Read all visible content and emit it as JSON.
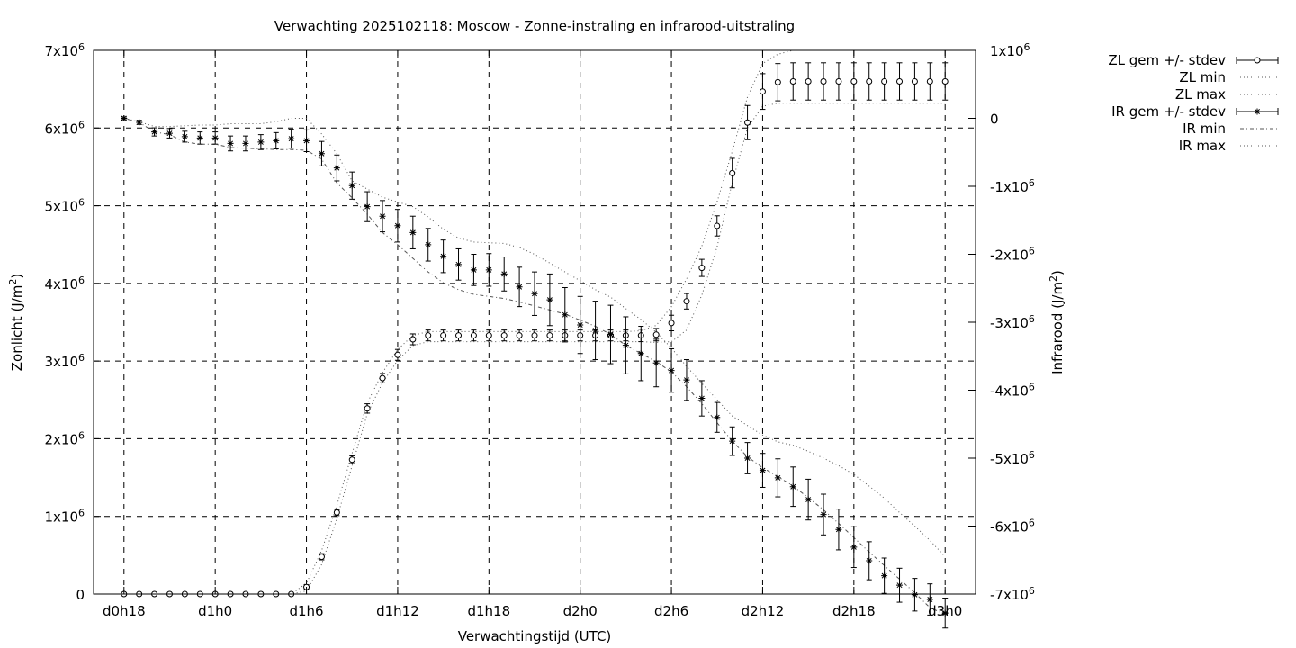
{
  "chart_data": {
    "type": "line",
    "title": "Verwachting 2025102118: Moscow - Zonne-instraling en infrarood-uitstraling",
    "xlabel": "Verwachtingstijd (UTC)",
    "ylabel": "Zonlicht (J/m²)",
    "y2label": "Infrarood (J/m²)",
    "x_tick_labels": [
      "d0h18",
      "d1h0",
      "d1h6",
      "d1h12",
      "d1h18",
      "d2h0",
      "d2h6",
      "d2h12",
      "d2h18",
      "d3h0"
    ],
    "x_tick_hours": [
      0,
      6,
      12,
      18,
      24,
      30,
      36,
      42,
      48,
      54
    ],
    "xlim_hours": [
      -2,
      56
    ],
    "y_ticks": [
      {
        "value": 0,
        "base": "0",
        "exp": ""
      },
      {
        "value": 1000000,
        "base": "1x10",
        "exp": "6"
      },
      {
        "value": 2000000,
        "base": "2x10",
        "exp": "6"
      },
      {
        "value": 3000000,
        "base": "3x10",
        "exp": "6"
      },
      {
        "value": 4000000,
        "base": "4x10",
        "exp": "6"
      },
      {
        "value": 5000000,
        "base": "5x10",
        "exp": "6"
      },
      {
        "value": 6000000,
        "base": "6x10",
        "exp": "6"
      },
      {
        "value": 7000000,
        "base": "7x10",
        "exp": "6"
      }
    ],
    "ylim": [
      0,
      7000000
    ],
    "y2_ticks": [
      {
        "value": 1000000,
        "base": "1x10",
        "exp": "6"
      },
      {
        "value": 0,
        "base": "0",
        "exp": ""
      },
      {
        "value": -1000000,
        "base": "-1x10",
        "exp": "6"
      },
      {
        "value": -2000000,
        "base": "-2x10",
        "exp": "6"
      },
      {
        "value": -3000000,
        "base": "-3x10",
        "exp": "6"
      },
      {
        "value": -4000000,
        "base": "-4x10",
        "exp": "6"
      },
      {
        "value": -5000000,
        "base": "-5x10",
        "exp": "6"
      },
      {
        "value": -6000000,
        "base": "-6x10",
        "exp": "6"
      },
      {
        "value": -7000000,
        "base": "-7x10",
        "exp": "6"
      }
    ],
    "y2lim": [
      -7000000,
      1000000
    ],
    "grid": true,
    "legend_position": "outside-right",
    "x_hours": [
      0,
      1,
      2,
      3,
      4,
      5,
      6,
      7,
      8,
      9,
      10,
      11,
      12,
      13,
      14,
      15,
      16,
      17,
      18,
      19,
      20,
      21,
      22,
      23,
      24,
      25,
      26,
      27,
      28,
      29,
      30,
      31,
      32,
      33,
      34,
      35,
      36,
      37,
      38,
      39,
      40,
      41,
      42,
      43,
      44,
      45,
      46,
      47,
      48,
      49,
      50,
      51,
      52,
      53,
      54
    ],
    "series": [
      {
        "name": "ZL gem +/- stdev",
        "axis": "y1",
        "marker": "circle",
        "mean": [
          0,
          0,
          0,
          0,
          0,
          0,
          0,
          0,
          0,
          0,
          0,
          0,
          90000,
          480000,
          1050000,
          1730000,
          2390000,
          2780000,
          3080000,
          3280000,
          3330000,
          3330000,
          3330000,
          3330000,
          3330000,
          3330000,
          3330000,
          3330000,
          3330000,
          3330000,
          3330000,
          3330000,
          3330000,
          3330000,
          3330000,
          3340000,
          3490000,
          3770000,
          4200000,
          4740000,
          5420000,
          6070000,
          6470000,
          6590000,
          6600000,
          6600000,
          6600000,
          6600000,
          6600000,
          6600000,
          6600000,
          6600000,
          6600000,
          6600000,
          6600000
        ],
        "stdev": [
          0,
          0,
          0,
          0,
          0,
          0,
          0,
          0,
          0,
          0,
          0,
          0,
          30000,
          40000,
          40000,
          50000,
          60000,
          60000,
          70000,
          70000,
          70000,
          70000,
          70000,
          70000,
          70000,
          70000,
          70000,
          70000,
          70000,
          70000,
          70000,
          70000,
          70000,
          70000,
          80000,
          80000,
          100000,
          100000,
          110000,
          130000,
          190000,
          220000,
          230000,
          240000,
          240000,
          240000,
          240000,
          240000,
          240000,
          240000,
          240000,
          240000,
          240000,
          240000,
          240000
        ]
      },
      {
        "name": "ZL min",
        "axis": "y1",
        "style": "dotted",
        "values": [
          0,
          0,
          0,
          0,
          0,
          0,
          0,
          0,
          0,
          0,
          0,
          0,
          40000,
          380000,
          970000,
          1650000,
          2320000,
          2720000,
          3010000,
          3200000,
          3250000,
          3250000,
          3250000,
          3250000,
          3250000,
          3250000,
          3250000,
          3250000,
          3250000,
          3250000,
          3250000,
          3250000,
          3250000,
          3250000,
          3250000,
          3240000,
          3250000,
          3400000,
          3850000,
          4470000,
          5300000,
          6000000,
          6280000,
          6320000,
          6320000,
          6320000,
          6320000,
          6320000,
          6320000,
          6320000,
          6320000,
          6320000,
          6320000,
          6320000,
          6320000
        ]
      },
      {
        "name": "ZL max",
        "axis": "y1",
        "style": "dotted",
        "values": [
          0,
          0,
          0,
          0,
          0,
          0,
          0,
          0,
          0,
          0,
          0,
          0,
          140000,
          560000,
          1140000,
          1810000,
          2460000,
          2850000,
          3150000,
          3330000,
          3380000,
          3380000,
          3380000,
          3380000,
          3380000,
          3380000,
          3380000,
          3380000,
          3380000,
          3380000,
          3380000,
          3380000,
          3380000,
          3380000,
          3390000,
          3460000,
          3700000,
          4060000,
          4480000,
          5050000,
          5700000,
          6400000,
          6830000,
          6950000,
          7000000,
          7000000,
          7000000,
          7000000,
          7000000,
          7000000,
          7000000,
          7000000,
          7000000,
          7000000,
          7000000
        ]
      },
      {
        "name": "IR gem +/- stdev",
        "axis": "y2",
        "marker": "star",
        "mean": [
          0,
          -60000,
          -200000,
          -220000,
          -270000,
          -290000,
          -290000,
          -370000,
          -370000,
          -350000,
          -330000,
          -300000,
          -330000,
          -520000,
          -730000,
          -990000,
          -1300000,
          -1440000,
          -1580000,
          -1680000,
          -1860000,
          -2030000,
          -2150000,
          -2230000,
          -2230000,
          -2290000,
          -2480000,
          -2580000,
          -2670000,
          -2890000,
          -3040000,
          -3120000,
          -3180000,
          -3340000,
          -3460000,
          -3600000,
          -3710000,
          -3850000,
          -4120000,
          -4400000,
          -4750000,
          -5000000,
          -5180000,
          -5290000,
          -5420000,
          -5610000,
          -5830000,
          -6050000,
          -6310000,
          -6510000,
          -6730000,
          -6870000,
          -7010000,
          -7080000,
          -7280000
        ]
      },
      {
        "name": "IR min",
        "axis": "y2",
        "style": "dotdash",
        "values": [
          0,
          -60000,
          -200000,
          -240000,
          -350000,
          -380000,
          -380000,
          -430000,
          -440000,
          -450000,
          -460000,
          -460000,
          -470000,
          -600000,
          -950000,
          -1170000,
          -1410000,
          -1680000,
          -1860000,
          -2060000,
          -2260000,
          -2420000,
          -2520000,
          -2590000,
          -2620000,
          -2650000,
          -2700000,
          -2760000,
          -2820000,
          -2880000,
          -2970000,
          -3060000,
          -3180000,
          -3340000,
          -3460000,
          -3580000,
          -3730000,
          -3950000,
          -4200000,
          -4480000,
          -4750000,
          -4980000,
          -5140000,
          -5270000,
          -5410000,
          -5580000,
          -5760000,
          -5960000,
          -6170000,
          -6380000,
          -6580000,
          -6780000,
          -6980000,
          -7200000,
          -7300000
        ]
      },
      {
        "name": "IR max",
        "axis": "y2",
        "style": "dotted",
        "values": [
          0,
          -50000,
          -120000,
          -120000,
          -110000,
          -100000,
          -100000,
          -80000,
          -80000,
          -80000,
          -50000,
          0,
          0,
          -230000,
          -520000,
          -920000,
          -1040000,
          -1160000,
          -1230000,
          -1300000,
          -1450000,
          -1630000,
          -1760000,
          -1820000,
          -1830000,
          -1840000,
          -1900000,
          -2000000,
          -2130000,
          -2260000,
          -2390000,
          -2520000,
          -2630000,
          -2800000,
          -2960000,
          -3150000,
          -3380000,
          -3650000,
          -3900000,
          -4140000,
          -4380000,
          -4520000,
          -4660000,
          -4760000,
          -4810000,
          -4900000,
          -5000000,
          -5110000,
          -5240000,
          -5410000,
          -5590000,
          -5800000,
          -6000000,
          -6210000,
          -6450000
        ]
      },
      {
        "name": "",
        "axis": "y2",
        "stdev_of": "IR gem +/- stdev",
        "stdev": [
          20000,
          30000,
          60000,
          70000,
          80000,
          90000,
          90000,
          110000,
          110000,
          110000,
          120000,
          140000,
          160000,
          180000,
          190000,
          200000,
          220000,
          230000,
          240000,
          240000,
          240000,
          240000,
          230000,
          230000,
          240000,
          250000,
          290000,
          320000,
          380000,
          400000,
          420000,
          430000,
          430000,
          420000,
          400000,
          350000,
          320000,
          300000,
          260000,
          220000,
          210000,
          230000,
          250000,
          280000,
          290000,
          300000,
          300000,
          300000,
          300000,
          280000,
          260000,
          250000,
          240000,
          230000,
          220000
        ]
      }
    ]
  }
}
